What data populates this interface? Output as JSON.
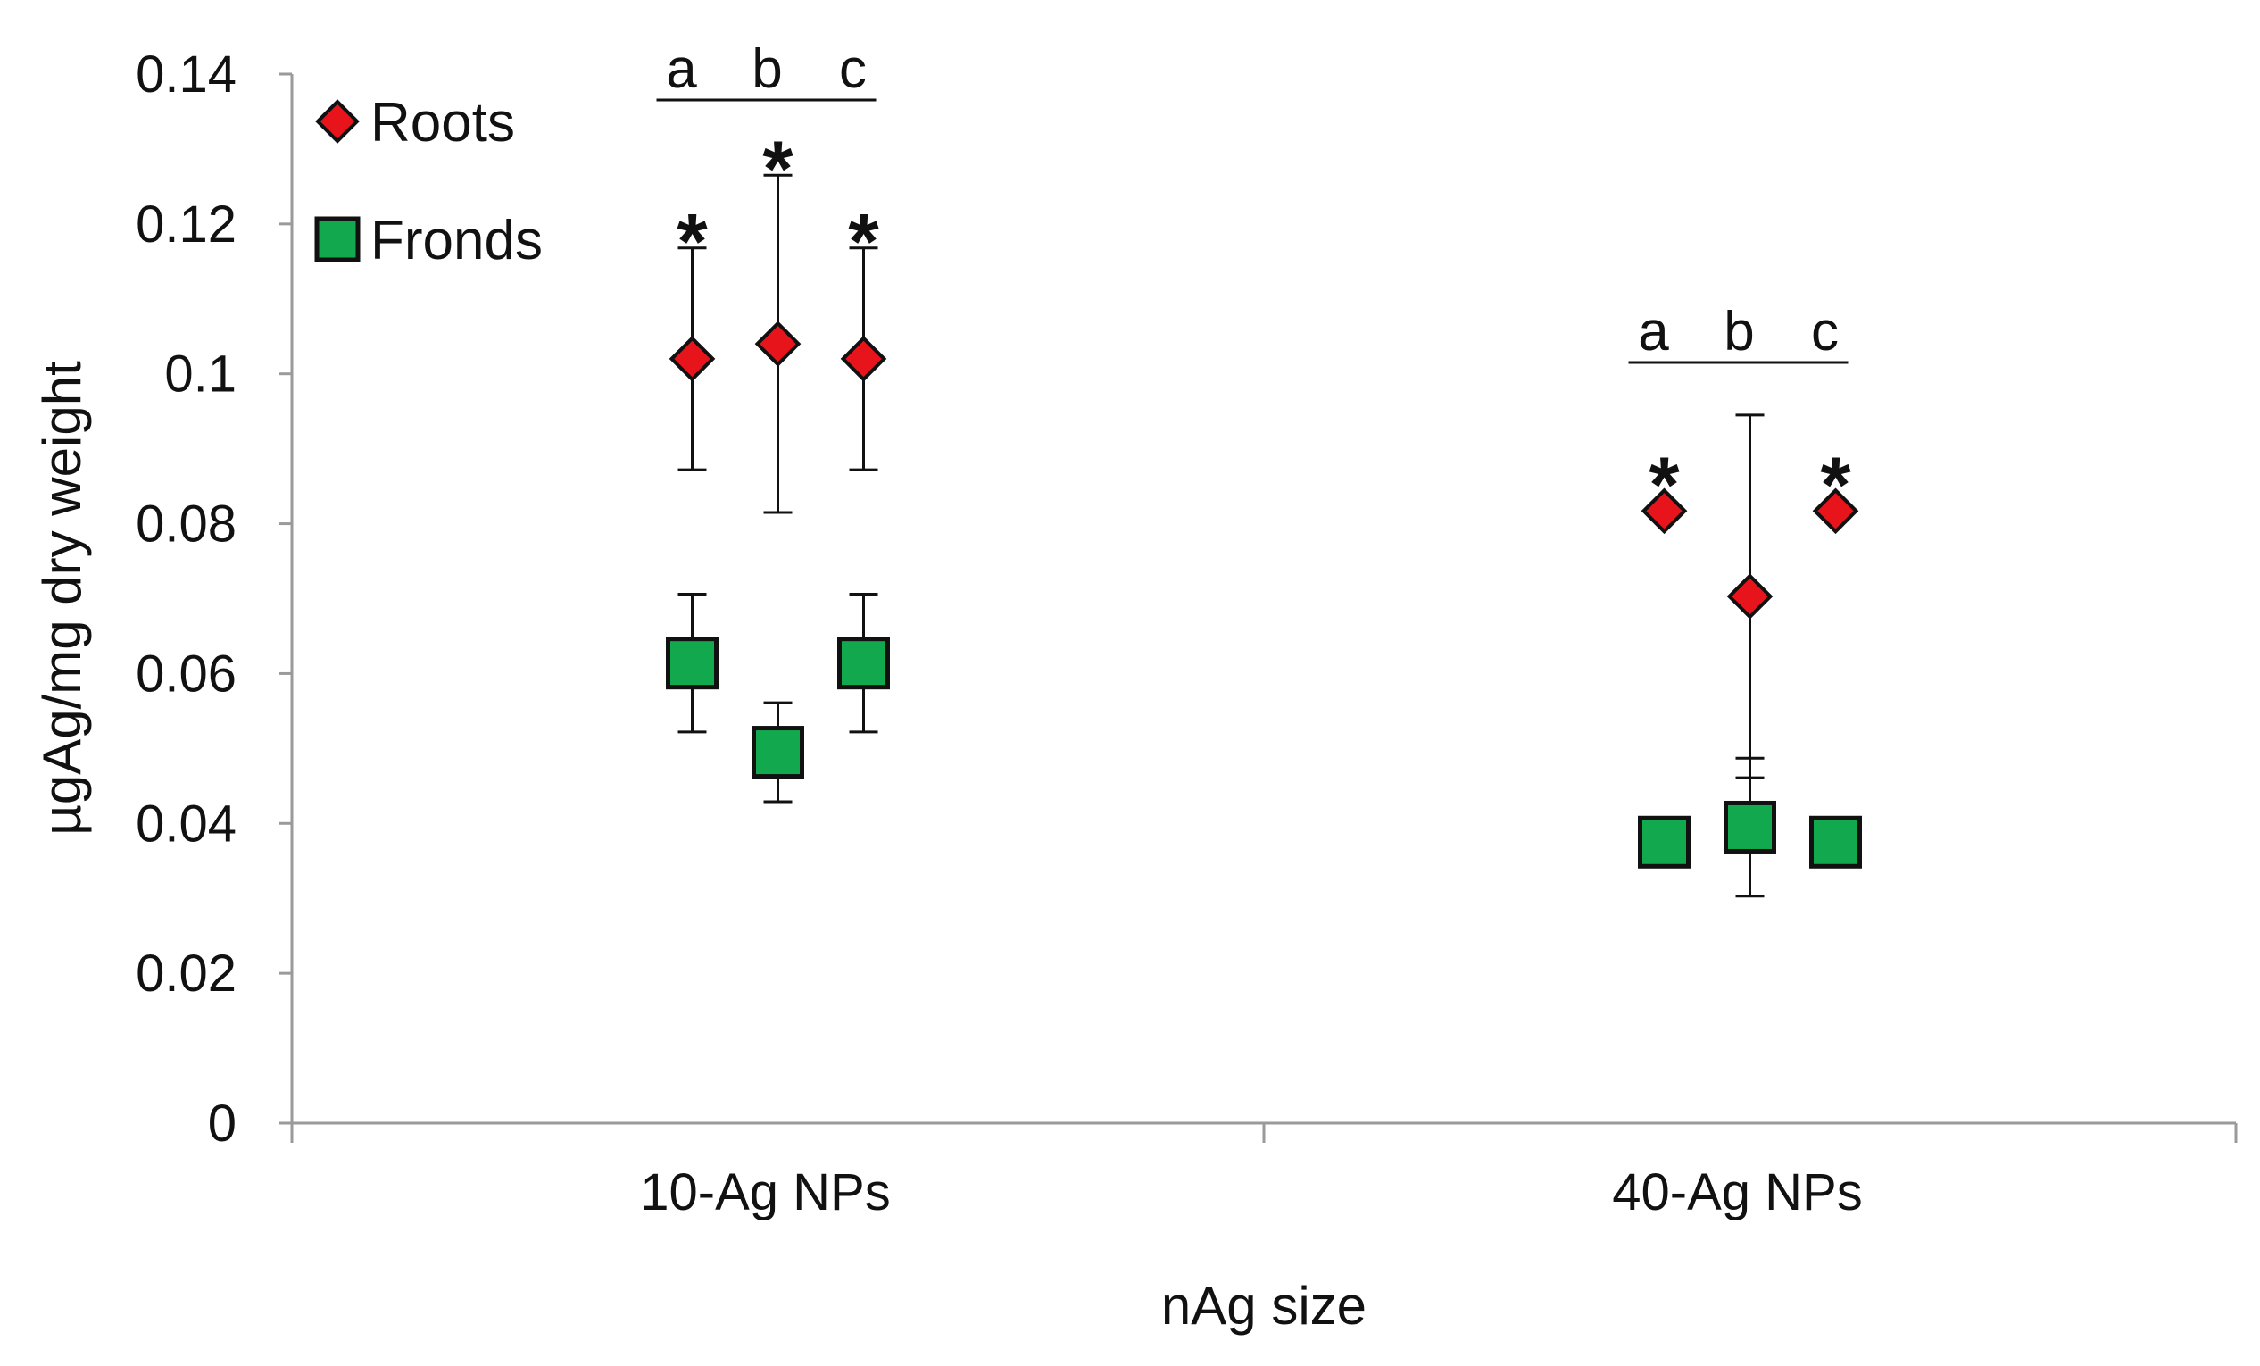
{
  "chart_data": {
    "type": "scatter",
    "title": "",
    "xlabel": "nAg size",
    "ylabel": "µgAg/mg dry weight",
    "ylim": [
      0,
      0.14
    ],
    "yticks": [
      "0",
      "0.02",
      "0.04",
      "0.06",
      "0.08",
      "0.1",
      "0.12",
      "0.14"
    ],
    "categories": [
      "10-Ag NPs",
      "40-Ag NPs"
    ],
    "group_letters": [
      "a",
      "b",
      "c"
    ],
    "significance_marker": "*",
    "legend_position": "top-left",
    "series": [
      {
        "name": "Roots",
        "marker": "diamond",
        "color": "#e8141b",
        "points": [
          {
            "category": "10-Ag NPs",
            "group": "a",
            "value": 0.102,
            "err": 0.0148,
            "sig": true
          },
          {
            "category": "10-Ag NPs",
            "group": "b",
            "value": 0.104,
            "err": 0.0225,
            "sig": true
          },
          {
            "category": "10-Ag NPs",
            "group": "c",
            "value": 0.102,
            "err": 0.0148,
            "sig": true
          },
          {
            "category": "40-Ag NPs",
            "group": "a",
            "value": 0.0817,
            "err": 0.0,
            "sig": true
          },
          {
            "category": "40-Ag NPs",
            "group": "b",
            "value": 0.0703,
            "err": 0.0242,
            "sig": false
          },
          {
            "category": "40-Ag NPs",
            "group": "c",
            "value": 0.0817,
            "err": 0.0,
            "sig": true
          }
        ]
      },
      {
        "name": "Fronds",
        "marker": "square",
        "color": "#12a94e",
        "points": [
          {
            "category": "10-Ag NPs",
            "group": "a",
            "value": 0.0614,
            "err": 0.0092
          },
          {
            "category": "10-Ag NPs",
            "group": "b",
            "value": 0.0495,
            "err": 0.0066
          },
          {
            "category": "10-Ag NPs",
            "group": "c",
            "value": 0.0614,
            "err": 0.0092
          },
          {
            "category": "40-Ag NPs",
            "group": "a",
            "value": 0.0375,
            "err": 0.0
          },
          {
            "category": "40-Ag NPs",
            "group": "b",
            "value": 0.0395,
            "err": 0.0092
          },
          {
            "category": "40-Ag NPs",
            "group": "c",
            "value": 0.0375,
            "err": 0.0
          }
        ]
      }
    ]
  }
}
